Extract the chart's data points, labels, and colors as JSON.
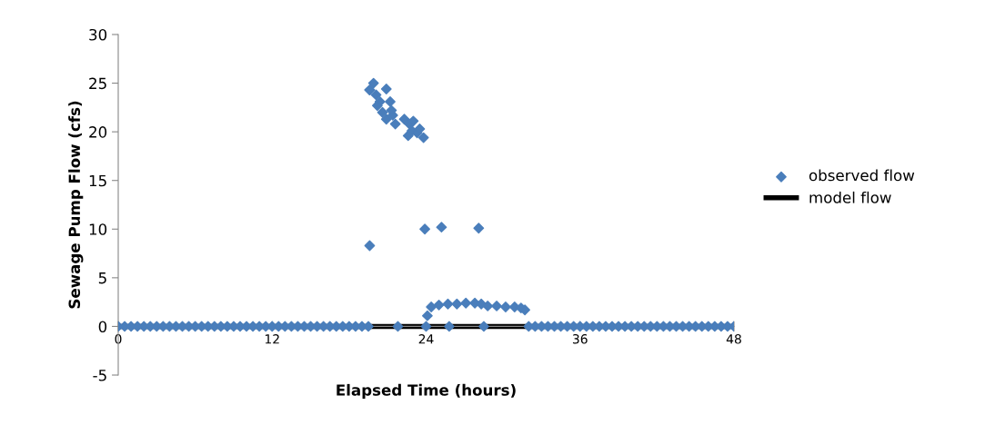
{
  "chart_data": {
    "type": "scatter",
    "xlabel": "Elapsed Time (hours)",
    "ylabel": "Sewage Pump Flow (cfs)",
    "xlim": [
      0,
      48
    ],
    "xticks": [
      0,
      12,
      24,
      36,
      48
    ],
    "ylim": [
      -5,
      30
    ],
    "yticks": [
      -5,
      0,
      5,
      10,
      15,
      20,
      25,
      30
    ],
    "grid": false,
    "legend": "right",
    "marker": "diamond",
    "series": [
      {
        "name": "observed flow",
        "color": "#4a7ebb",
        "x": [
          0,
          0.5,
          1,
          1.5,
          2,
          2.5,
          3,
          3.5,
          4,
          4.5,
          5,
          5.5,
          6,
          6.5,
          7,
          7.5,
          8,
          8.5,
          9,
          9.5,
          10,
          10.5,
          11,
          11.5,
          12,
          12.5,
          13,
          13.5,
          14,
          14.5,
          15,
          15.5,
          16,
          16.5,
          17,
          17.5,
          18,
          18.5,
          19,
          19.5,
          21.8,
          24.0,
          25.8,
          28.5,
          19.6,
          19.9,
          19.6,
          20.1,
          20.4,
          20.9,
          20.6,
          20.9,
          21.2,
          21.4,
          21.6,
          22.3,
          22.7,
          22.9,
          23.0,
          23.3,
          23.5,
          23.8,
          22.6,
          21.3,
          20.2,
          19.6,
          23.9,
          25.2,
          28.1,
          24.1,
          24.4,
          25.0,
          25.7,
          26.4,
          27.1,
          27.8,
          28.3,
          28.8,
          29.5,
          30.2,
          30.9,
          31.4,
          31.7,
          32,
          32.5,
          33,
          33.5,
          34,
          34.5,
          35,
          35.5,
          36,
          36.5,
          37,
          37.5,
          38,
          38.5,
          39,
          39.5,
          40,
          40.5,
          41,
          41.5,
          42,
          42.5,
          43,
          43.5,
          44,
          44.5,
          45,
          45.5,
          46,
          46.5,
          47,
          47.5,
          48
        ],
        "values": [
          0,
          0,
          0,
          0,
          0,
          0,
          0,
          0,
          0,
          0,
          0,
          0,
          0,
          0,
          0,
          0,
          0,
          0,
          0,
          0,
          0,
          0,
          0,
          0,
          0,
          0,
          0,
          0,
          0,
          0,
          0,
          0,
          0,
          0,
          0,
          0,
          0,
          0,
          0,
          0,
          0,
          0,
          0,
          0,
          24.3,
          25.0,
          24.3,
          23.8,
          23.1,
          24.4,
          22.0,
          21.3,
          23.1,
          21.7,
          20.8,
          21.3,
          20.8,
          20.1,
          21.1,
          19.9,
          20.3,
          19.4,
          19.6,
          22.2,
          22.7,
          8.3,
          10.0,
          10.2,
          10.1,
          1.1,
          2.0,
          2.2,
          2.3,
          2.3,
          2.4,
          2.4,
          2.3,
          2.1,
          2.1,
          2.0,
          2.0,
          1.9,
          1.7,
          0,
          0,
          0,
          0,
          0,
          0,
          0,
          0,
          0,
          0,
          0,
          0,
          0,
          0,
          0,
          0,
          0,
          0,
          0,
          0,
          0,
          0,
          0,
          0,
          0,
          0,
          0,
          0,
          0,
          0,
          0,
          0,
          0
        ]
      },
      {
        "name": "model flow",
        "type": "line",
        "color": "#000000",
        "marker": "none",
        "x": [
          0,
          48
        ],
        "values": [
          0,
          0
        ]
      }
    ]
  }
}
